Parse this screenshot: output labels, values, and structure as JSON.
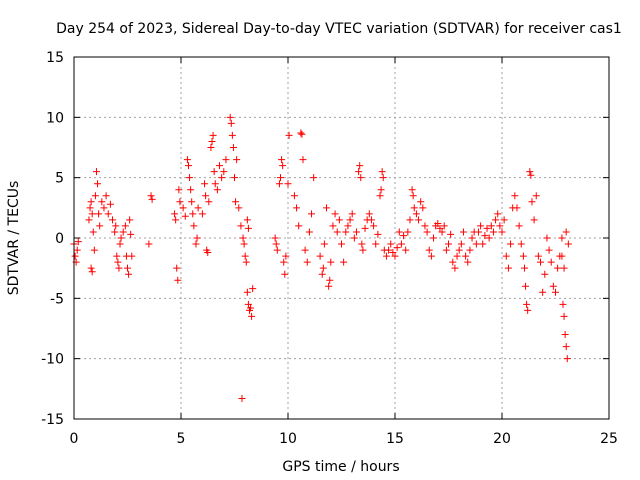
{
  "chart_data": {
    "type": "scatter",
    "title": "Day 254 of 2023, Sidereal Day-to-day VTEC variation (SDTVAR) for receiver cas1",
    "xlabel": "GPS time / hours",
    "ylabel": "SDTVAR / TECUs",
    "xlim": [
      0,
      25
    ],
    "ylim": [
      -15,
      15
    ],
    "xticks": [
      0,
      5,
      10,
      15,
      20,
      25
    ],
    "yticks": [
      -15,
      -10,
      -5,
      0,
      5,
      10,
      15
    ],
    "grid": true,
    "marker": "+",
    "color": "#ff0000",
    "series": [
      {
        "name": "SDTVAR",
        "points": [
          [
            0.0,
            -0.5
          ],
          [
            0.05,
            -1.5
          ],
          [
            0.1,
            -2.0
          ],
          [
            0.15,
            -1.0
          ],
          [
            0.2,
            -0.3
          ],
          [
            0.7,
            1.5
          ],
          [
            0.75,
            2.5
          ],
          [
            0.8,
            3.0
          ],
          [
            0.85,
            2.0
          ],
          [
            0.8,
            -2.5
          ],
          [
            0.85,
            -2.8
          ],
          [
            0.9,
            0.5
          ],
          [
            0.95,
            -1.0
          ],
          [
            1.0,
            3.5
          ],
          [
            1.05,
            5.5
          ],
          [
            1.1,
            4.5
          ],
          [
            1.15,
            2.0
          ],
          [
            1.2,
            1.0
          ],
          [
            1.3,
            3.0
          ],
          [
            1.4,
            2.5
          ],
          [
            1.5,
            3.5
          ],
          [
            1.6,
            2.0
          ],
          [
            1.7,
            2.8
          ],
          [
            1.8,
            1.5
          ],
          [
            1.9,
            0.5
          ],
          [
            1.95,
            1.0
          ],
          [
            2.0,
            -1.5
          ],
          [
            2.05,
            -2.0
          ],
          [
            2.1,
            -2.5
          ],
          [
            2.15,
            -0.5
          ],
          [
            2.2,
            0.0
          ],
          [
            2.3,
            0.5
          ],
          [
            2.4,
            1.0
          ],
          [
            2.45,
            -1.5
          ],
          [
            2.5,
            -2.5
          ],
          [
            2.55,
            -3.0
          ],
          [
            2.6,
            1.5
          ],
          [
            2.65,
            0.3
          ],
          [
            2.7,
            -1.5
          ],
          [
            3.5,
            -0.5
          ],
          [
            3.6,
            3.5
          ],
          [
            3.65,
            3.2
          ],
          [
            4.7,
            2.0
          ],
          [
            4.75,
            1.5
          ],
          [
            4.8,
            -2.5
          ],
          [
            4.85,
            -3.5
          ],
          [
            4.9,
            4.0
          ],
          [
            4.95,
            3.0
          ],
          [
            5.1,
            2.5
          ],
          [
            5.2,
            1.8
          ],
          [
            5.3,
            6.5
          ],
          [
            5.35,
            6.0
          ],
          [
            5.4,
            5.0
          ],
          [
            5.45,
            4.0
          ],
          [
            5.5,
            3.0
          ],
          [
            5.55,
            2.0
          ],
          [
            5.6,
            1.0
          ],
          [
            5.7,
            -0.5
          ],
          [
            5.75,
            0.0
          ],
          [
            5.8,
            2.5
          ],
          [
            6.0,
            2.0
          ],
          [
            6.1,
            4.5
          ],
          [
            6.15,
            3.5
          ],
          [
            6.2,
            -1.0
          ],
          [
            6.25,
            -1.2
          ],
          [
            6.3,
            3.0
          ],
          [
            6.4,
            7.5
          ],
          [
            6.45,
            8.0
          ],
          [
            6.5,
            8.5
          ],
          [
            6.55,
            5.5
          ],
          [
            6.6,
            4.5
          ],
          [
            6.7,
            4.0
          ],
          [
            6.8,
            6.0
          ],
          [
            6.9,
            5.0
          ],
          [
            7.0,
            5.5
          ],
          [
            7.1,
            6.5
          ],
          [
            7.3,
            10.0
          ],
          [
            7.35,
            9.5
          ],
          [
            7.4,
            8.5
          ],
          [
            7.45,
            7.5
          ],
          [
            7.5,
            5.0
          ],
          [
            7.55,
            3.0
          ],
          [
            7.6,
            6.5
          ],
          [
            7.7,
            2.5
          ],
          [
            7.8,
            1.0
          ],
          [
            7.85,
            -13.3
          ],
          [
            7.9,
            0.0
          ],
          [
            7.95,
            -0.5
          ],
          [
            8.0,
            -1.5
          ],
          [
            8.05,
            -2.0
          ],
          [
            8.1,
            -4.5
          ],
          [
            8.15,
            -5.5
          ],
          [
            8.2,
            -6.0
          ],
          [
            8.25,
            -5.8
          ],
          [
            8.3,
            -6.5
          ],
          [
            8.35,
            -4.2
          ],
          [
            8.1,
            1.5
          ],
          [
            8.15,
            0.8
          ],
          [
            9.4,
            0.0
          ],
          [
            9.45,
            -0.5
          ],
          [
            9.5,
            -1.0
          ],
          [
            9.6,
            4.5
          ],
          [
            9.65,
            5.0
          ],
          [
            9.7,
            6.5
          ],
          [
            9.75,
            6.0
          ],
          [
            9.8,
            -2.0
          ],
          [
            9.85,
            -3.0
          ],
          [
            9.9,
            -1.5
          ],
          [
            10.0,
            4.5
          ],
          [
            10.05,
            8.5
          ],
          [
            10.3,
            3.5
          ],
          [
            10.4,
            2.5
          ],
          [
            10.5,
            1.0
          ],
          [
            10.6,
            8.7
          ],
          [
            10.65,
            8.6
          ],
          [
            10.7,
            6.5
          ],
          [
            10.8,
            -1.0
          ],
          [
            10.9,
            -2.0
          ],
          [
            11.0,
            0.5
          ],
          [
            11.1,
            2.0
          ],
          [
            11.2,
            5.0
          ],
          [
            11.5,
            -1.5
          ],
          [
            11.6,
            -3.0
          ],
          [
            11.65,
            -2.5
          ],
          [
            11.7,
            -0.5
          ],
          [
            11.8,
            2.5
          ],
          [
            11.9,
            -4.0
          ],
          [
            11.95,
            -3.5
          ],
          [
            12.0,
            -2.0
          ],
          [
            12.1,
            1.0
          ],
          [
            12.2,
            2.0
          ],
          [
            12.3,
            0.5
          ],
          [
            12.4,
            1.5
          ],
          [
            12.5,
            -0.5
          ],
          [
            12.6,
            -2.0
          ],
          [
            12.7,
            0.5
          ],
          [
            12.8,
            1.0
          ],
          [
            12.9,
            1.5
          ],
          [
            13.0,
            2.0
          ],
          [
            13.1,
            0.0
          ],
          [
            13.2,
            0.5
          ],
          [
            13.3,
            5.5
          ],
          [
            13.35,
            6.0
          ],
          [
            13.4,
            5.0
          ],
          [
            13.45,
            -0.5
          ],
          [
            13.5,
            -1.0
          ],
          [
            13.6,
            0.8
          ],
          [
            13.7,
            1.5
          ],
          [
            13.8,
            2.0
          ],
          [
            13.9,
            1.5
          ],
          [
            14.0,
            1.0
          ],
          [
            14.1,
            -0.5
          ],
          [
            14.2,
            0.3
          ],
          [
            14.3,
            3.5
          ],
          [
            14.35,
            4.0
          ],
          [
            14.4,
            5.5
          ],
          [
            14.45,
            5.0
          ],
          [
            14.5,
            -1.0
          ],
          [
            14.6,
            -1.5
          ],
          [
            14.7,
            -1.0
          ],
          [
            14.8,
            -0.5
          ],
          [
            14.9,
            -1.2
          ],
          [
            15.0,
            -1.5
          ],
          [
            15.1,
            -0.8
          ],
          [
            15.2,
            0.5
          ],
          [
            15.3,
            -0.5
          ],
          [
            15.4,
            0.2
          ],
          [
            15.5,
            -1.0
          ],
          [
            15.6,
            0.5
          ],
          [
            15.7,
            1.5
          ],
          [
            15.8,
            4.0
          ],
          [
            15.85,
            3.5
          ],
          [
            15.9,
            2.5
          ],
          [
            16.0,
            2.0
          ],
          [
            16.1,
            1.5
          ],
          [
            16.2,
            3.0
          ],
          [
            16.3,
            2.5
          ],
          [
            16.4,
            1.0
          ],
          [
            16.5,
            0.5
          ],
          [
            16.6,
            -1.0
          ],
          [
            16.7,
            -1.5
          ],
          [
            16.8,
            0.0
          ],
          [
            16.9,
            1.0
          ],
          [
            17.0,
            1.2
          ],
          [
            17.1,
            0.8
          ],
          [
            17.2,
            0.5
          ],
          [
            17.3,
            1.0
          ],
          [
            17.4,
            -1.0
          ],
          [
            17.5,
            -0.5
          ],
          [
            17.6,
            0.3
          ],
          [
            17.7,
            -2.0
          ],
          [
            17.8,
            -2.5
          ],
          [
            17.9,
            -1.5
          ],
          [
            18.0,
            -1.0
          ],
          [
            18.1,
            -0.5
          ],
          [
            18.2,
            0.5
          ],
          [
            18.3,
            -1.5
          ],
          [
            18.4,
            -2.0
          ],
          [
            18.5,
            -1.0
          ],
          [
            18.6,
            0.0
          ],
          [
            18.7,
            0.5
          ],
          [
            18.8,
            -0.5
          ],
          [
            18.9,
            0.5
          ],
          [
            19.0,
            1.0
          ],
          [
            19.1,
            -0.5
          ],
          [
            19.2,
            0.2
          ],
          [
            19.3,
            0.8
          ],
          [
            19.4,
            0.0
          ],
          [
            19.5,
            1.0
          ],
          [
            19.6,
            0.5
          ],
          [
            19.7,
            1.5
          ],
          [
            19.8,
            2.0
          ],
          [
            19.9,
            1.0
          ],
          [
            20.0,
            0.5
          ],
          [
            20.1,
            1.5
          ],
          [
            20.2,
            -1.5
          ],
          [
            20.3,
            -2.5
          ],
          [
            20.4,
            -0.5
          ],
          [
            20.5,
            2.5
          ],
          [
            20.6,
            3.5
          ],
          [
            20.7,
            2.5
          ],
          [
            20.8,
            1.0
          ],
          [
            20.9,
            -0.5
          ],
          [
            21.0,
            -1.5
          ],
          [
            21.05,
            -2.5
          ],
          [
            21.1,
            -4.0
          ],
          [
            21.15,
            -5.5
          ],
          [
            21.2,
            -6.0
          ],
          [
            21.3,
            5.5
          ],
          [
            21.35,
            5.2
          ],
          [
            21.4,
            3.0
          ],
          [
            21.5,
            1.5
          ],
          [
            21.6,
            3.5
          ],
          [
            21.7,
            -1.5
          ],
          [
            21.8,
            -2.0
          ],
          [
            21.9,
            -4.5
          ],
          [
            22.0,
            -3.0
          ],
          [
            22.1,
            0.0
          ],
          [
            22.2,
            -1.0
          ],
          [
            22.3,
            -2.0
          ],
          [
            22.4,
            -4.0
          ],
          [
            22.5,
            -4.5
          ],
          [
            22.6,
            -2.5
          ],
          [
            22.7,
            -1.5
          ],
          [
            22.8,
            0.0
          ],
          [
            22.85,
            -5.5
          ],
          [
            22.9,
            -6.5
          ],
          [
            22.95,
            -8.0
          ],
          [
            23.0,
            -9.0
          ],
          [
            23.05,
            -10.0
          ],
          [
            23.1,
            -0.5
          ],
          [
            22.8,
            -1.5
          ],
          [
            22.9,
            -2.5
          ],
          [
            23.0,
            0.5
          ]
        ]
      }
    ]
  }
}
